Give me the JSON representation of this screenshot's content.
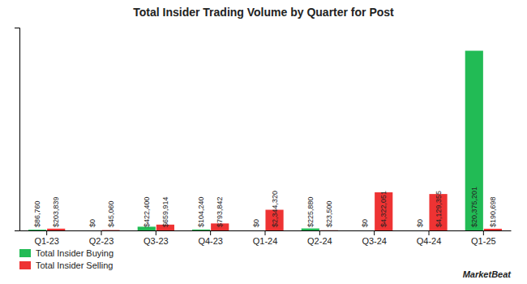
{
  "chart_data": {
    "type": "bar",
    "title": "Total Insider Trading Volume by Quarter for Post",
    "categories": [
      "Q1-23",
      "Q2-23",
      "Q3-23",
      "Q4-23",
      "Q1-24",
      "Q2-24",
      "Q3-24",
      "Q4-24",
      "Q1-25"
    ],
    "series": [
      {
        "name": "Total Insider Buying",
        "color": "#22bb55",
        "values": [
          86760,
          0,
          422400,
          104240,
          0,
          225880,
          0,
          0,
          20375201
        ],
        "value_labels": [
          "$86,760",
          "$0",
          "$422,400",
          "$104,240",
          "$0",
          "$225,880",
          "$0",
          "$0",
          "$20,375,201"
        ]
      },
      {
        "name": "Total Insider Selling",
        "color": "#ee3333",
        "values": [
          203839,
          45060,
          659914,
          793842,
          2344320,
          23500,
          4322051,
          4129355,
          190698
        ],
        "value_labels": [
          "$203,839",
          "$45,060",
          "$659,914",
          "$793,842",
          "$2,344,320",
          "$23,500",
          "$4,322,051",
          "$4,129,355",
          "$190,698"
        ]
      }
    ],
    "ylim": [
      0,
      23000000
    ],
    "yticks": [],
    "tick_labels": "x",
    "data_labels": true,
    "grid": false,
    "legend": "lower left",
    "annotations": [
      "MarketBeat"
    ]
  }
}
